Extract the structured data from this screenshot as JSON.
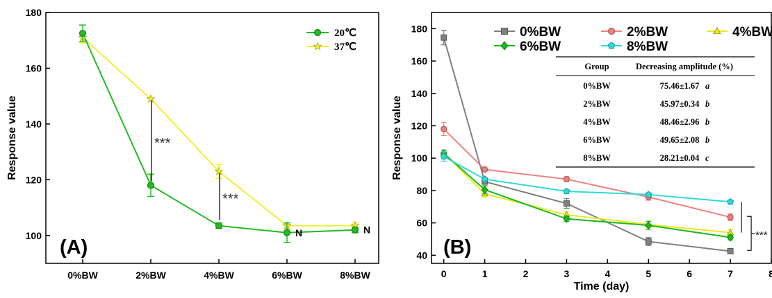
{
  "chart_data": [
    {
      "type": "line",
      "panel_label": "(A)",
      "xlabel": "",
      "ylabel": "Response value",
      "categories": [
        "0%BW",
        "2%BW",
        "4%BW",
        "6%BW",
        "8%BW"
      ],
      "ylim": [
        90,
        180
      ],
      "yticks": [
        100,
        120,
        140,
        160,
        180
      ],
      "legend_position": "top-right",
      "series": [
        {
          "name": "20℃",
          "color": "#22bb22",
          "marker": "circle",
          "values": [
            172.5,
            118,
            103.5,
            101,
            102
          ],
          "errors": [
            3,
            4,
            1,
            3.5,
            1
          ]
        },
        {
          "name": "37℃",
          "color": "#f0f030",
          "marker": "star",
          "values": [
            171,
            149,
            123,
            103.5,
            103.5
          ],
          "errors": [
            2,
            0,
            2.5,
            1,
            1
          ]
        }
      ],
      "annotations": [
        {
          "text": "***",
          "at": "2%BW"
        },
        {
          "text": "***",
          "at": "4%BW"
        },
        {
          "text": "N",
          "at": "6%BW"
        },
        {
          "text": "N",
          "at": "8%BW"
        }
      ]
    },
    {
      "type": "line",
      "panel_label": "(B)",
      "xlabel": "Time (day)",
      "ylabel": "Response value",
      "x": [
        0,
        1,
        3,
        5,
        7
      ],
      "xlim": [
        -0.3,
        8
      ],
      "xticks": [
        0,
        1,
        2,
        3,
        4,
        5,
        6,
        7,
        8
      ],
      "ylim": [
        35,
        190
      ],
      "yticks": [
        40,
        60,
        80,
        100,
        120,
        140,
        160,
        180
      ],
      "legend_position": "top",
      "series": [
        {
          "name": "0%BW",
          "color": "#808080",
          "marker": "square",
          "values": [
            174.5,
            85.5,
            72,
            48.5,
            42.5
          ],
          "errors": [
            4.5,
            1.5,
            3,
            2.5,
            1.5
          ]
        },
        {
          "name": "2%BW",
          "color": "#f08080",
          "marker": "circle",
          "values": [
            118,
            93,
            87,
            76,
            63.5
          ],
          "errors": [
            4,
            1,
            1.5,
            2,
            2
          ]
        },
        {
          "name": "4%BW",
          "color": "#e8e820",
          "marker": "triangle",
          "values": [
            103,
            78,
            65,
            59,
            54
          ],
          "errors": [
            2,
            2,
            2,
            2,
            2
          ]
        },
        {
          "name": "6%BW",
          "color": "#1eb81e",
          "marker": "diamond",
          "values": [
            103,
            80.5,
            62.5,
            58.5,
            51
          ],
          "errors": [
            2,
            2.5,
            1.5,
            2.5,
            1.5
          ]
        },
        {
          "name": "8%BW",
          "color": "#30d8d8",
          "marker": "pentagon",
          "values": [
            101,
            87,
            79.5,
            77.5,
            73
          ],
          "errors": [
            3,
            1,
            1,
            1,
            1
          ]
        }
      ],
      "annotations": [
        {
          "text": "***",
          "at": "day 7"
        }
      ],
      "table": {
        "headers": [
          "Group",
          "Decreasing amplitude (%)"
        ],
        "rows": [
          {
            "group": "0%BW",
            "value": "75.46±1.67",
            "letter": "a"
          },
          {
            "group": "2%BW",
            "value": "45.97±0.34",
            "letter": "b"
          },
          {
            "group": "4%BW",
            "value": "48.46±2.96",
            "letter": "b"
          },
          {
            "group": "6%BW",
            "value": "49.65±2.08",
            "letter": "b"
          },
          {
            "group": "8%BW",
            "value": "28.21±0.04",
            "letter": "c"
          }
        ]
      }
    }
  ]
}
